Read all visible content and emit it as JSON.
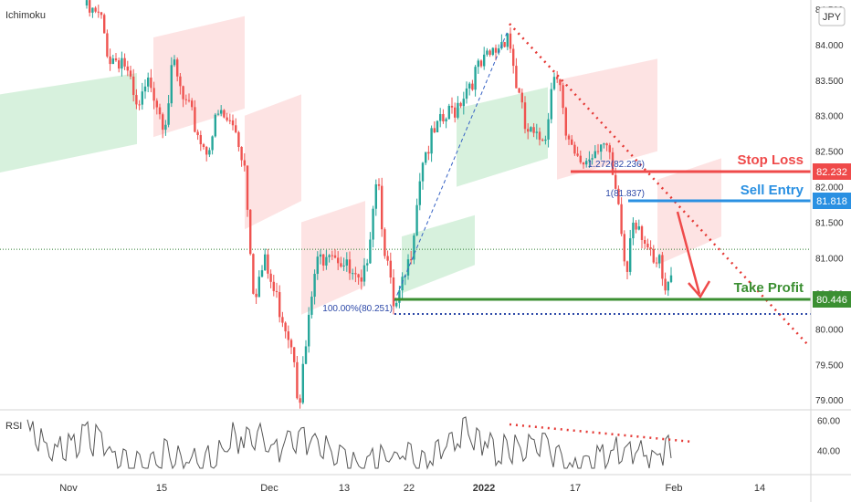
{
  "chart_data": {
    "type": "candlestick",
    "indicator_label": "Ichimoku",
    "currency_label": "JPY",
    "y_axis": {
      "min": 78.9,
      "max": 84.55,
      "ticks": [
        "84.500",
        "84.000",
        "83.500",
        "83.000",
        "82.500",
        "82.000",
        "81.500",
        "81.000",
        "80.500",
        "80.000",
        "79.500",
        "79.000"
      ]
    },
    "x_axis": {
      "ticks": [
        "Nov",
        "15",
        "Dec",
        "13",
        "22",
        "2022",
        "17",
        "Feb",
        "14"
      ]
    },
    "levels": {
      "stop_loss": {
        "label": "Stop Loss",
        "value": "82.232",
        "color": "#ef4a4a"
      },
      "sell_entry": {
        "label": "Sell Entry",
        "value": "81.818",
        "color": "#2a90e2"
      },
      "take_profit": {
        "label": "Take Profit",
        "value": "80.446",
        "color": "#3b8f32"
      }
    },
    "fib_labels": {
      "f100": "100.00%(80.251)",
      "f127": "1.272(82.236)",
      "f1": "1(81.837)"
    },
    "rsi": {
      "label": "RSI",
      "ticks": [
        "60.00",
        "40.00"
      ],
      "min": 25,
      "max": 65
    },
    "current_price_level": 81.12,
    "colors": {
      "up": "#26a69a",
      "down": "#ef5350",
      "cloud_green": "#cdeed4",
      "cloud_red": "#fcdcdc"
    }
  }
}
